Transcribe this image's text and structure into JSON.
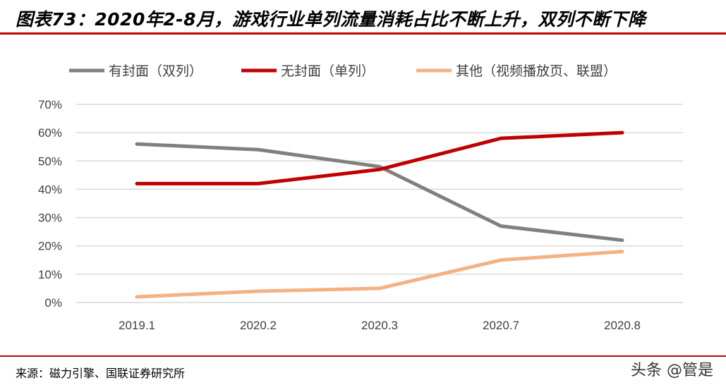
{
  "title": "图表73：2020年2-8月，游戏行业单列流量消耗占比不断上升，双列不断下降",
  "source": "来源：磁力引擎、国联证券研究所",
  "watermark": "头条 @管是",
  "chart_data": {
    "type": "line",
    "title": "",
    "categories": [
      "2019.1",
      "2020.2",
      "2020.3",
      "2020.7",
      "2020.8"
    ],
    "ylim": [
      0,
      70
    ],
    "yticks": [
      "0%",
      "10%",
      "20%",
      "30%",
      "40%",
      "50%",
      "60%",
      "70%"
    ],
    "grid": true,
    "legend_position": "top",
    "series": [
      {
        "name": "有封面（双列）",
        "color": "#808080",
        "values": [
          56,
          54,
          48,
          27,
          22
        ]
      },
      {
        "name": "无封面（单列）",
        "color": "#c00000",
        "values": [
          42,
          42,
          47,
          58,
          60
        ]
      },
      {
        "name": "其他（视频播放页、联盟）",
        "color": "#f4b183",
        "values": [
          2,
          4,
          5,
          15,
          18
        ]
      }
    ]
  }
}
